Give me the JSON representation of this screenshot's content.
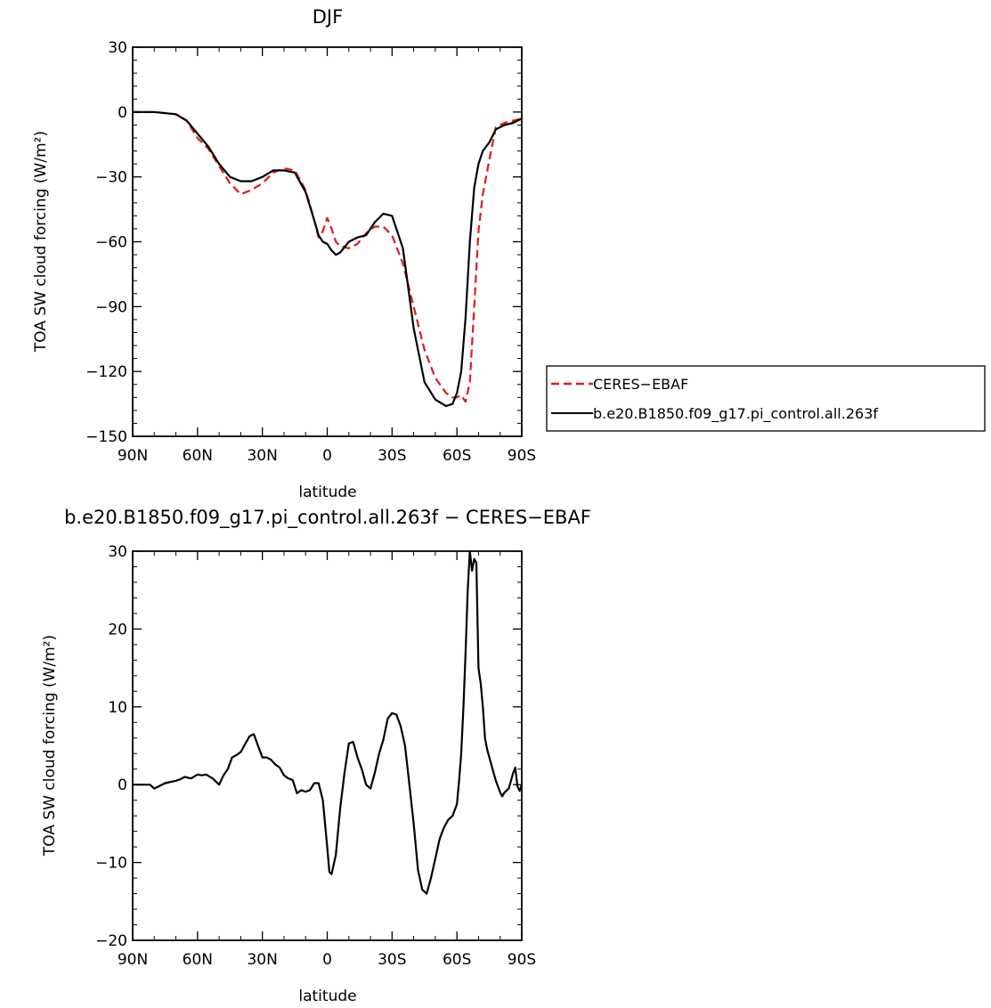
{
  "colors": {
    "ceres": "#e01b1b",
    "model": "#000000",
    "axis": "#000000"
  },
  "chart_data": [
    {
      "type": "line",
      "title": "DJF",
      "xlabel": "latitude",
      "ylabel": "TOA SW cloud forcing (W/m²)",
      "xlim": [
        90,
        -90
      ],
      "ylim": [
        -150,
        30
      ],
      "xticks": [
        90,
        60,
        30,
        0,
        -30,
        -60,
        -90
      ],
      "xticklabels": [
        "90N",
        "60N",
        "30N",
        "0",
        "30S",
        "60S",
        "90S"
      ],
      "yticks": [
        -150,
        -120,
        -90,
        -60,
        -30,
        0,
        30
      ],
      "yticklabels": [
        "−150",
        "−120",
        "−90",
        "−60",
        "−30",
        "0",
        "30"
      ],
      "legend": {
        "placement": "outside-right"
      },
      "series": [
        {
          "name": "CERES−EBAF",
          "style": "dashed",
          "color": "#e01b1b",
          "x": [
            90,
            80,
            70,
            65,
            60,
            55,
            50,
            45,
            40,
            35,
            30,
            25,
            20,
            15,
            10,
            6,
            4,
            2,
            0,
            -2,
            -4,
            -6,
            -10,
            -14,
            -18,
            -22,
            -26,
            -30,
            -35,
            -40,
            -45,
            -50,
            -55,
            -58,
            -60,
            -62,
            -64,
            -66,
            -68,
            -70,
            -72,
            -75,
            -78,
            -82,
            -86,
            -90
          ],
          "y": [
            0,
            0,
            -1,
            -4,
            -12,
            -17,
            -25,
            -33,
            -38,
            -36,
            -33,
            -28,
            -26,
            -27,
            -36,
            -50,
            -58,
            -55,
            -49,
            -54,
            -60,
            -62,
            -63,
            -61,
            -56,
            -53,
            -53,
            -57,
            -70,
            -90,
            -110,
            -123,
            -130,
            -132,
            -132,
            -131,
            -134,
            -125,
            -90,
            -55,
            -38,
            -22,
            -7,
            -5,
            -4,
            -3
          ]
        },
        {
          "name": "b.e20.B1850.f09_g17.pi_control.all.263f",
          "style": "solid",
          "color": "#000000",
          "x": [
            90,
            80,
            70,
            65,
            60,
            55,
            50,
            45,
            40,
            35,
            30,
            25,
            20,
            15,
            10,
            6,
            4,
            2,
            0,
            -2,
            -4,
            -6,
            -10,
            -14,
            -18,
            -22,
            -26,
            -30,
            -35,
            -40,
            -45,
            -50,
            -55,
            -58,
            -60,
            -62,
            -64,
            -66,
            -68,
            -70,
            -72,
            -75,
            -78,
            -82,
            -86,
            -90
          ],
          "y": [
            0,
            0,
            -1,
            -4,
            -10,
            -16,
            -24,
            -30,
            -32,
            -32,
            -30,
            -27,
            -27,
            -28,
            -37,
            -50,
            -57,
            -60,
            -61,
            -64,
            -66,
            -65,
            -60,
            -58,
            -57,
            -51,
            -47,
            -48,
            -63,
            -100,
            -125,
            -133,
            -136,
            -135,
            -130,
            -120,
            -95,
            -60,
            -35,
            -24,
            -18,
            -14,
            -8,
            -6,
            -5,
            -3
          ]
        }
      ]
    },
    {
      "type": "line",
      "title": "b.e20.B1850.f09_g17.pi_control.all.263f − CERES−EBAF",
      "xlabel": "latitude",
      "ylabel": "TOA SW cloud forcing (W/m²)",
      "xlim": [
        90,
        -90
      ],
      "ylim": [
        -20,
        30
      ],
      "xticks": [
        90,
        60,
        30,
        0,
        -30,
        -60,
        -90
      ],
      "xticklabels": [
        "90N",
        "60N",
        "30N",
        "0",
        "30S",
        "60S",
        "90S"
      ],
      "yticks": [
        -20,
        -10,
        0,
        10,
        20,
        30
      ],
      "yticklabels": [
        "−20",
        "−10",
        "0",
        "10",
        "20",
        "30"
      ],
      "series": [
        {
          "color": "#000000",
          "x": [
            90,
            82,
            80,
            75,
            70,
            68,
            66,
            63,
            60,
            58,
            56,
            53,
            50,
            48,
            46,
            44,
            42,
            40,
            38,
            36,
            34,
            32,
            30,
            28,
            26,
            24,
            22,
            20,
            19,
            18,
            16,
            14,
            12,
            10,
            8,
            6,
            4,
            2,
            0,
            -1,
            -2,
            -4,
            -6,
            -8,
            -10,
            -12,
            -14,
            -16,
            -18,
            -20,
            -22,
            -24,
            -26,
            -28,
            -30,
            -32,
            -34,
            -36,
            -38,
            -40,
            -42,
            -44,
            -46,
            -48,
            -50,
            -52,
            -54,
            -56,
            -58,
            -60,
            -61,
            -62,
            -63,
            -64,
            -65,
            -66,
            -67,
            -68,
            -69,
            -70,
            -71,
            -72,
            -73,
            -74,
            -75,
            -76,
            -78,
            -80,
            -81,
            -82,
            -84,
            -86,
            -87,
            -88,
            -89,
            -90
          ],
          "y": [
            0,
            0,
            -0.5,
            0.2,
            0.5,
            0.7,
            1.0,
            0.8,
            1.3,
            1.2,
            1.3,
            0.8,
            0,
            1.2,
            2,
            3.5,
            3.8,
            4.2,
            5.2,
            6.2,
            6.5,
            5,
            3.5,
            3.5,
            3.2,
            2.6,
            2.2,
            1.2,
            1.0,
            0.8,
            0.6,
            -1.1,
            -0.7,
            -0.9,
            -0.7,
            0.2,
            0.2,
            -2,
            -8,
            -11.2,
            -11.5,
            -9,
            -3,
            1.5,
            5.3,
            5.5,
            3.5,
            2,
            0,
            -0.5,
            1.5,
            4,
            5.8,
            8.5,
            9.2,
            9.0,
            7.5,
            5.0,
            0,
            -5,
            -11,
            -13.5,
            -14,
            -12,
            -9.5,
            -7,
            -5.5,
            -4.5,
            -4,
            -2.5,
            0.5,
            4,
            10,
            17,
            25,
            30,
            27.5,
            29,
            28.5,
            15,
            13,
            10,
            6,
            4.5,
            3.5,
            2.5,
            0.5,
            -1,
            -1.5,
            -1.0,
            -0.5,
            1.5,
            2.2,
            -0.2,
            -0.8,
            0
          ]
        }
      ]
    }
  ]
}
